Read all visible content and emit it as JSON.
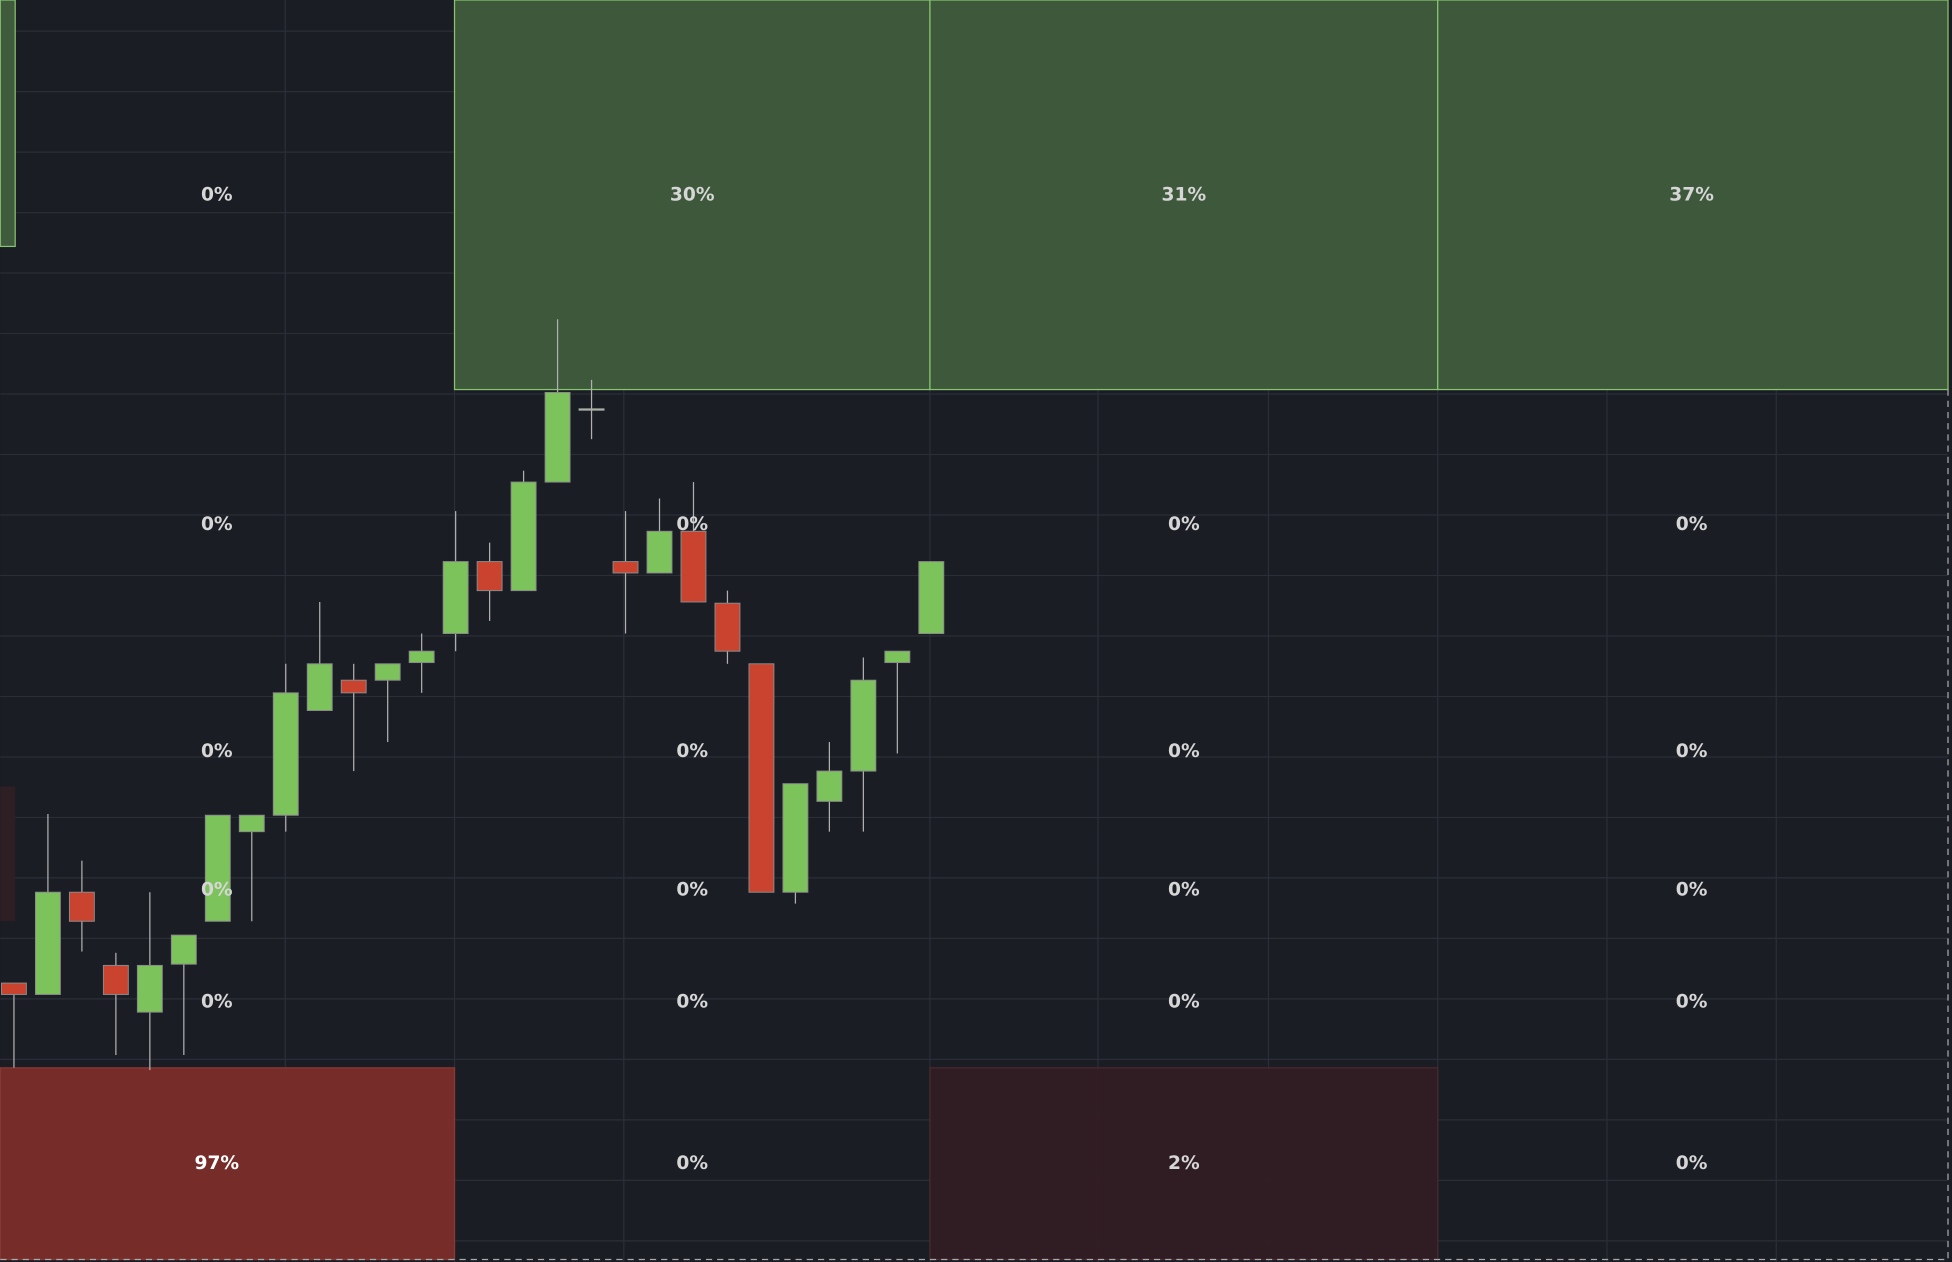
{
  "grid": {
    "rows": [
      [
        {
          "text": "0%"
        },
        {
          "text": "30%",
          "color": "#3f5a3c",
          "border": "#86c46f"
        },
        {
          "text": "31%",
          "color": "#3f5a3c",
          "border": "#86c46f"
        },
        {
          "text": "37%",
          "color": "#3f5a3c",
          "border": "#86c46f"
        }
      ],
      [
        {
          "text": "0%"
        },
        {
          "text": "0%"
        },
        {
          "text": "0%"
        },
        {
          "text": "0%"
        }
      ],
      [
        {
          "text": "0%"
        },
        {
          "text": "0%"
        },
        {
          "text": "0%"
        },
        {
          "text": "0%"
        }
      ],
      [
        {
          "text": "0%"
        },
        {
          "text": "0%"
        },
        {
          "text": "0%"
        },
        {
          "text": "0%"
        }
      ],
      [
        {
          "text": "0%"
        },
        {
          "text": "0%"
        },
        {
          "text": "0%"
        },
        {
          "text": "0%"
        }
      ],
      [
        {
          "text": "97%",
          "color": "#7a2d29",
          "border": "#8a3a33"
        },
        {
          "text": "0%"
        },
        {
          "text": "2%",
          "color": "#321d23",
          "border": "#4a2a2e"
        },
        {
          "text": "0%"
        }
      ]
    ]
  },
  "chart_data": {
    "type": "candlestick",
    "ylim": [
      0,
      100
    ],
    "up_color": "#7dc35b",
    "down_color": "#c9432e",
    "series": [
      {
        "open": [
          22.1,
          21.2,
          29.3,
          23.5,
          19.8,
          23.6,
          27.0,
          34.1,
          35.4,
          43.7,
          46.1,
          46.1,
          47.5,
          49.8,
          55.5,
          53.2,
          61.8,
          67.6,
          55.5,
          54.6,
          57.9,
          52.2,
          47.4,
          29.3,
          36.5,
          38.9,
          47.5,
          49.8
        ],
        "high": [
          22.1,
          35.5,
          31.8,
          24.5,
          29.3,
          25.9,
          35.4,
          35.4,
          47.4,
          52.3,
          47.4,
          47.4,
          49.8,
          59.5,
          57.0,
          62.7,
          74.7,
          69.9,
          59.5,
          60.5,
          61.8,
          53.2,
          47.4,
          37.9,
          41.2,
          47.9,
          48.4,
          55.5
        ],
        "low": [
          15.4,
          21.2,
          24.6,
          16.4,
          15.2,
          16.4,
          27.0,
          27.0,
          34.1,
          43.7,
          38.9,
          41.2,
          45.1,
          48.4,
          50.8,
          53.2,
          61.8,
          65.2,
          49.8,
          54.6,
          52.3,
          47.4,
          29.3,
          28.4,
          34.1,
          34.1,
          40.3,
          49.8
        ],
        "close": [
          21.2,
          29.3,
          27.0,
          21.2,
          23.5,
          25.9,
          35.4,
          35.4,
          45.1,
          47.4,
          45.1,
          47.4,
          48.4,
          55.5,
          53.2,
          61.8,
          68.9,
          67.6,
          54.6,
          57.9,
          52.3,
          48.4,
          29.3,
          37.9,
          38.9,
          46.1,
          48.4,
          55.5
        ]
      }
    ]
  }
}
